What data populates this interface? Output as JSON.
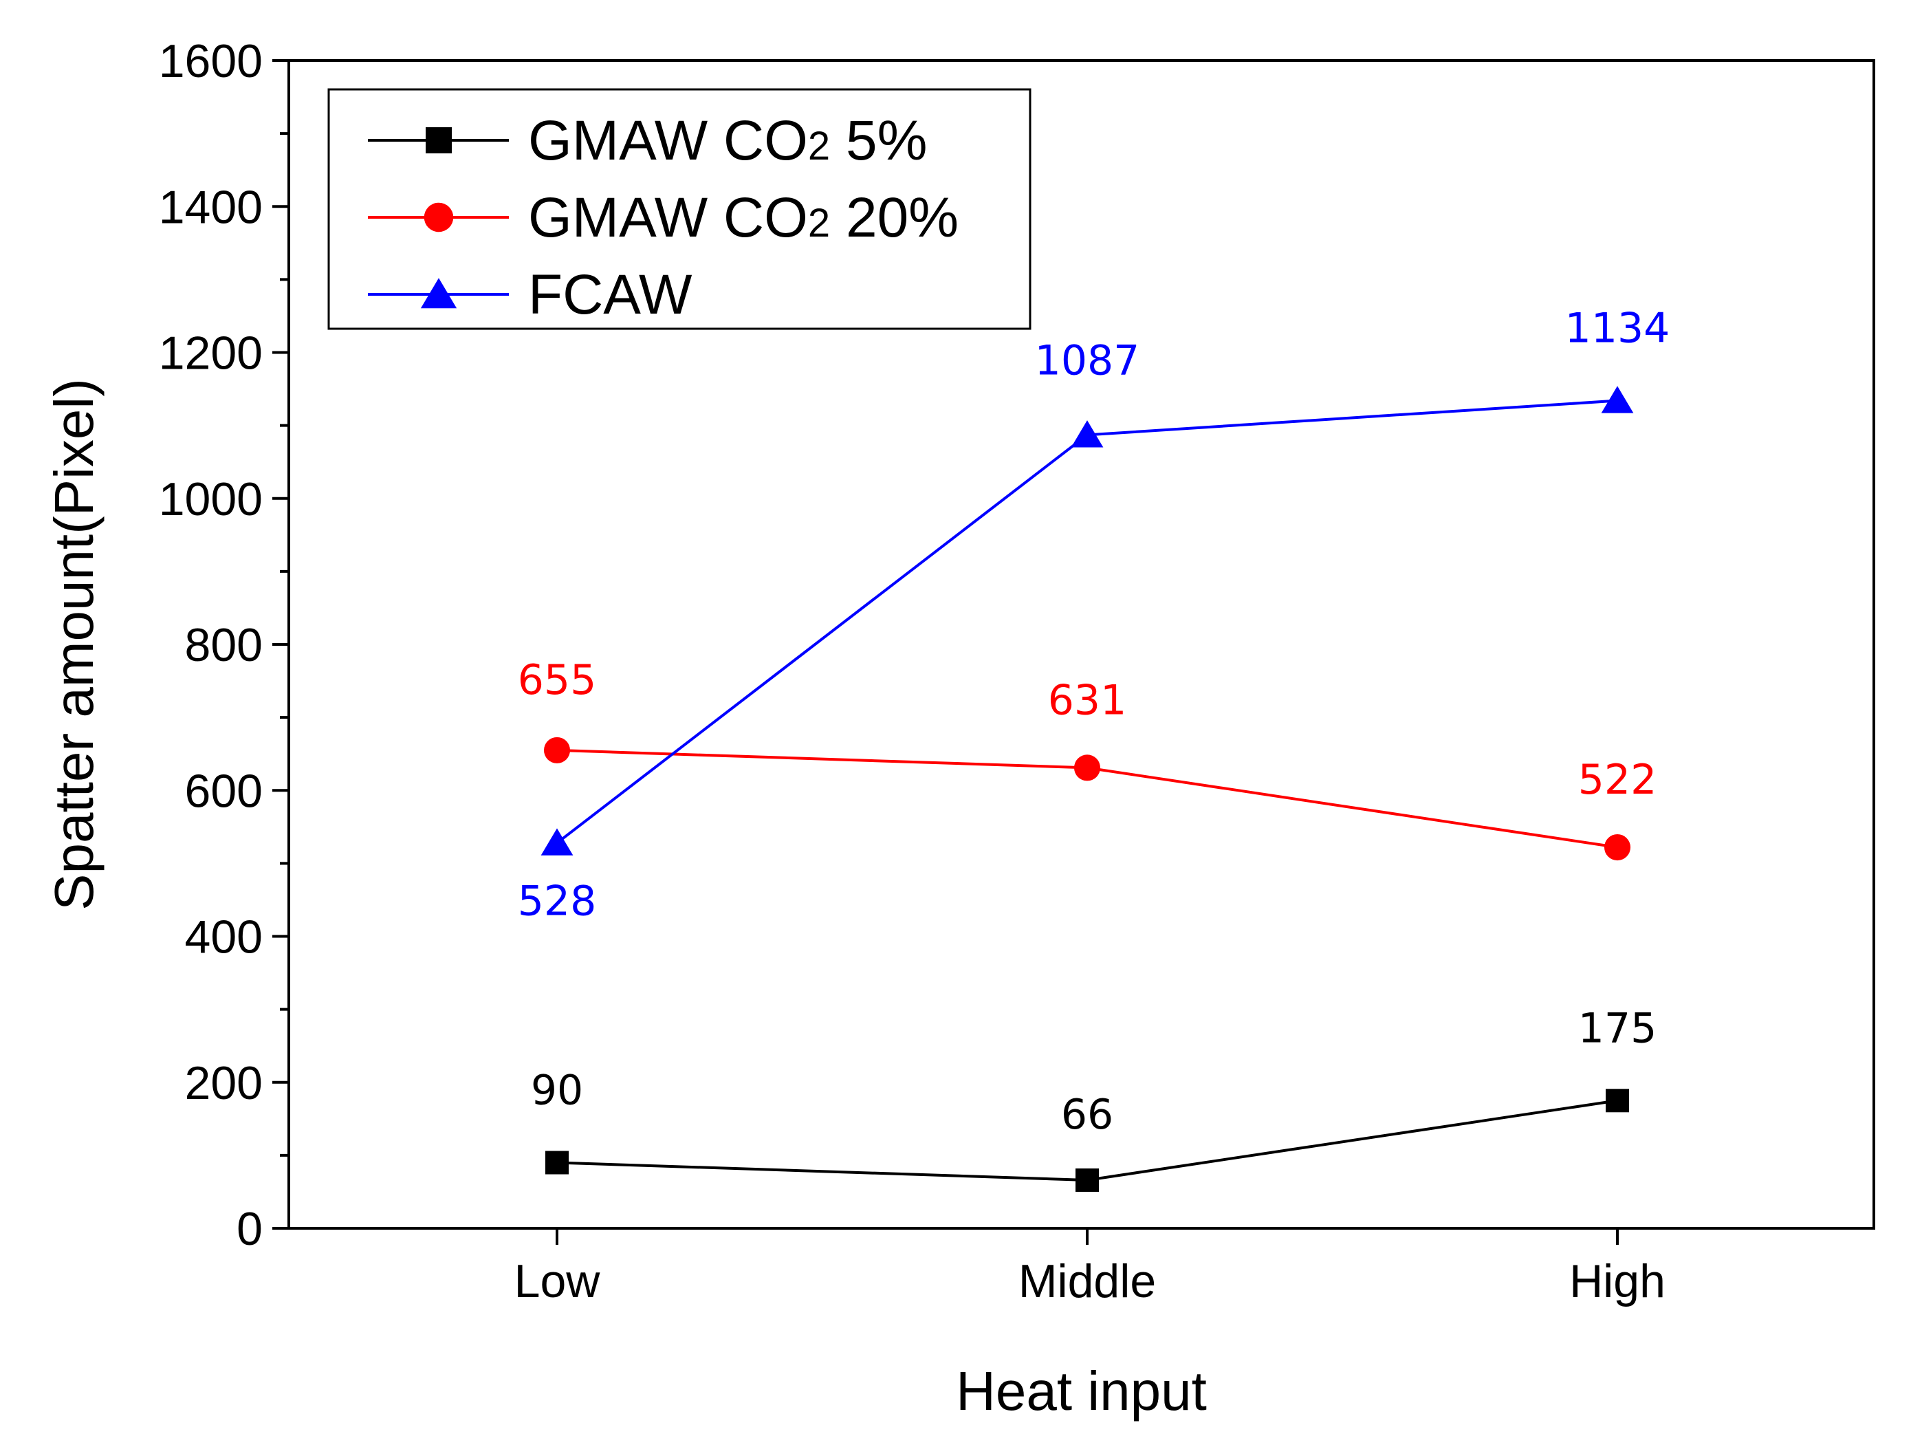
{
  "chart_data": {
    "type": "line",
    "xlabel": "Heat input",
    "ylabel": "Spatter amount(Pixel)",
    "categories": [
      "Low",
      "Middle",
      "High"
    ],
    "ylim": [
      0,
      1600
    ],
    "y_ticks": [
      0,
      200,
      400,
      600,
      800,
      1000,
      1200,
      1400,
      1600
    ],
    "y_tick_labels": [
      "0",
      "200",
      "400",
      "600",
      "800",
      "1000",
      "1200",
      "1400",
      "1600"
    ],
    "grid": false,
    "legend_position": "top-left",
    "series": [
      {
        "name": "GMAW CO2 5%",
        "legend_parts": [
          "GMAW CO",
          "2",
          " 5%"
        ],
        "color": "#000000",
        "marker": "square",
        "values": [
          90,
          66,
          175
        ],
        "labels": [
          "90",
          "66",
          "175"
        ]
      },
      {
        "name": "GMAW CO2 20%",
        "legend_parts": [
          "GMAW CO",
          "2",
          " 20%"
        ],
        "color": "#ff0000",
        "marker": "circle",
        "values": [
          655,
          631,
          522
        ],
        "labels": [
          "655",
          "631",
          "522"
        ]
      },
      {
        "name": "FCAW",
        "legend_parts": [
          "FCAW",
          "",
          ""
        ],
        "color": "#0000ff",
        "marker": "triangle",
        "values": [
          528,
          1087,
          1134
        ],
        "labels": [
          "528",
          "1087",
          "1134"
        ]
      }
    ]
  }
}
